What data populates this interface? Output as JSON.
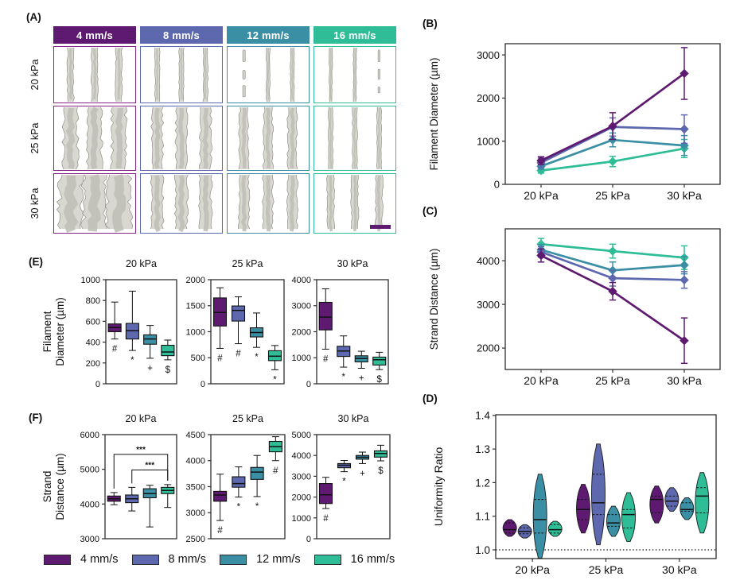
{
  "figure": {
    "panels": {
      "a": "(A)",
      "b": "(B)",
      "c": "(C)",
      "d": "(D)",
      "e": "(E)",
      "f": "(F)"
    }
  },
  "legend": {
    "items": [
      {
        "label": "4 mm/s",
        "color": "#5e1a70"
      },
      {
        "label": "8 mm/s",
        "color": "#5d68ae"
      },
      {
        "label": "12 mm/s",
        "color": "#3b8fa5"
      },
      {
        "label": "16 mm/s",
        "color": "#2ebd96"
      }
    ]
  },
  "panel_a": {
    "label": "(A)",
    "column_headers": [
      "4 mm/s",
      "8 mm/s",
      "12 mm/s",
      "16 mm/s"
    ],
    "header_colors": [
      "#5e1a70",
      "#5d68ae",
      "#3b8fa5",
      "#2ebd96"
    ],
    "border_colors": [
      "#8a2386",
      "#5d68ae",
      "#3b8fa5",
      "#2ebd96"
    ],
    "row_labels": [
      "20 kPa",
      "25 kPa",
      "30 kPa"
    ],
    "strand_widths": [
      [
        7,
        5,
        4,
        3
      ],
      [
        16,
        12,
        10,
        5
      ],
      [
        26,
        13,
        11,
        8
      ]
    ],
    "broken_strand": [
      [
        -1,
        -1,
        0,
        2
      ],
      [
        -1,
        -1,
        -1,
        -1
      ],
      [
        -1,
        -1,
        -1,
        -1
      ]
    ],
    "scale_bar_color": "#5e1a70"
  },
  "chart_data": [
    {
      "panel": "B",
      "type": "line",
      "ylabel": "Filament Diameter (µm)",
      "categories": [
        "20 kPa",
        "25 kPa",
        "30 kPa"
      ],
      "ylim": [
        0,
        3260
      ],
      "yticks": [
        0,
        1000,
        2000,
        3000
      ],
      "series": [
        {
          "name": "4 mm/s",
          "color": "#5e1a70",
          "values": [
            550,
            1350,
            2570
          ],
          "errors": [
            90,
            310,
            600
          ]
        },
        {
          "name": "8 mm/s",
          "color": "#5d68ae",
          "values": [
            500,
            1330,
            1280
          ],
          "errors": [
            110,
            210,
            330
          ]
        },
        {
          "name": "12 mm/s",
          "color": "#3b8fa5",
          "values": [
            420,
            1030,
            900
          ],
          "errors": [
            70,
            160,
            230
          ]
        },
        {
          "name": "16 mm/s",
          "color": "#2ebd96",
          "values": [
            320,
            530,
            830
          ],
          "errors": [
            60,
            120,
            210
          ]
        }
      ]
    },
    {
      "panel": "C",
      "type": "line",
      "ylabel": "Strand Distance (µm)",
      "categories": [
        "20 kPa",
        "25 kPa",
        "30 kPa"
      ],
      "ylim": [
        1510,
        4730
      ],
      "yticks": [
        2000,
        3000,
        4000
      ],
      "series": [
        {
          "name": "4 mm/s",
          "color": "#5e1a70",
          "values": [
            4120,
            3300,
            2170
          ],
          "errors": [
            150,
            200,
            520
          ]
        },
        {
          "name": "8 mm/s",
          "color": "#5d68ae",
          "values": [
            4200,
            3600,
            3560
          ],
          "errors": [
            120,
            180,
            190
          ]
        },
        {
          "name": "12 mm/s",
          "color": "#3b8fa5",
          "values": [
            4250,
            3780,
            3900
          ],
          "errors": [
            120,
            190,
            200
          ]
        },
        {
          "name": "16 mm/s",
          "color": "#2ebd96",
          "values": [
            4380,
            4220,
            4070
          ],
          "errors": [
            130,
            160,
            270
          ]
        }
      ]
    },
    {
      "panel": "D",
      "type": "violin",
      "ylabel": "Uniformity Ratio",
      "groups": [
        "20 kPa",
        "25 kPa",
        "30 kPa"
      ],
      "ylim": [
        0.974,
        1.402
      ],
      "yticks": [
        1.0,
        1.1,
        1.2,
        1.3,
        1.4
      ],
      "refline": 1.0,
      "violins": [
        {
          "group": "20 kPa",
          "speed": "4 mm/s",
          "color": "#5e1a70",
          "min": 1.04,
          "q1": 1.05,
          "median": 1.06,
          "q3": 1.08,
          "max": 1.09
        },
        {
          "group": "20 kPa",
          "speed": "8 mm/s",
          "color": "#5d68ae",
          "min": 1.035,
          "q1": 1.048,
          "median": 1.055,
          "q3": 1.065,
          "max": 1.075
        },
        {
          "group": "20 kPa",
          "speed": "12 mm/s",
          "color": "#3b8fa5",
          "min": 0.975,
          "q1": 1.05,
          "median": 1.09,
          "q3": 1.15,
          "max": 1.225
        },
        {
          "group": "20 kPa",
          "speed": "16 mm/s",
          "color": "#2ebd96",
          "min": 1.04,
          "q1": 1.05,
          "median": 1.06,
          "q3": 1.075,
          "max": 1.085
        },
        {
          "group": "25 kPa",
          "speed": "4 mm/s",
          "color": "#5e1a70",
          "min": 1.05,
          "q1": 1.09,
          "median": 1.12,
          "q3": 1.15,
          "max": 1.195
        },
        {
          "group": "25 kPa",
          "speed": "8 mm/s",
          "color": "#5d68ae",
          "min": 1.015,
          "q1": 1.105,
          "median": 1.14,
          "q3": 1.225,
          "max": 1.315
        },
        {
          "group": "25 kPa",
          "speed": "12 mm/s",
          "color": "#3b8fa5",
          "min": 1.04,
          "q1": 1.07,
          "median": 1.08,
          "q3": 1.105,
          "max": 1.13
        },
        {
          "group": "25 kPa",
          "speed": "16 mm/s",
          "color": "#2ebd96",
          "min": 1.025,
          "q1": 1.065,
          "median": 1.105,
          "q3": 1.12,
          "max": 1.17
        },
        {
          "group": "30 kPa",
          "speed": "4 mm/s",
          "color": "#5e1a70",
          "min": 1.08,
          "q1": 1.11,
          "median": 1.15,
          "q3": 1.16,
          "max": 1.19
        },
        {
          "group": "30 kPa",
          "speed": "8 mm/s",
          "color": "#5d68ae",
          "min": 1.115,
          "q1": 1.13,
          "median": 1.145,
          "q3": 1.16,
          "max": 1.185
        },
        {
          "group": "30 kPa",
          "speed": "12 mm/s",
          "color": "#3b8fa5",
          "min": 1.09,
          "q1": 1.115,
          "median": 1.12,
          "q3": 1.14,
          "max": 1.155
        },
        {
          "group": "30 kPa",
          "speed": "16 mm/s",
          "color": "#2ebd96",
          "min": 1.05,
          "q1": 1.11,
          "median": 1.16,
          "q3": 1.185,
          "max": 1.23
        }
      ]
    },
    {
      "panel": "E",
      "type": "box",
      "ylabel_lines": [
        "Filament",
        "Diameter (µm)"
      ],
      "subplots": [
        {
          "title": "20 kPa",
          "ylim": [
            0,
            1000
          ],
          "yticks": [
            0,
            200,
            400,
            600,
            800,
            1000
          ],
          "boxes": [
            {
              "speed": "4 mm/s",
              "color": "#5e1a70",
              "min": 430,
              "q1": 500,
              "median": 540,
              "q3": 575,
              "max": 785,
              "annotation": "#"
            },
            {
              "speed": "8 mm/s",
              "color": "#5d68ae",
              "min": 320,
              "q1": 430,
              "median": 510,
              "q3": 580,
              "max": 890,
              "annotation": "*"
            },
            {
              "speed": "12 mm/s",
              "color": "#3b8fa5",
              "min": 245,
              "q1": 380,
              "median": 430,
              "q3": 470,
              "max": 560,
              "annotation": "+"
            },
            {
              "speed": "16 mm/s",
              "color": "#2ebd96",
              "min": 230,
              "q1": 270,
              "median": 305,
              "q3": 370,
              "max": 420,
              "annotation": "$"
            }
          ]
        },
        {
          "title": "25 kPa",
          "ylim": [
            0,
            2000
          ],
          "yticks": [
            0,
            500,
            1000,
            1500,
            2000
          ],
          "boxes": [
            {
              "speed": "4 mm/s",
              "color": "#5e1a70",
              "min": 680,
              "q1": 1110,
              "median": 1370,
              "q3": 1650,
              "max": 1845,
              "annotation": "#"
            },
            {
              "speed": "8 mm/s",
              "color": "#5d68ae",
              "min": 770,
              "q1": 1205,
              "median": 1410,
              "q3": 1495,
              "max": 1670,
              "annotation": "#"
            },
            {
              "speed": "12 mm/s",
              "color": "#3b8fa5",
              "min": 700,
              "q1": 900,
              "median": 985,
              "q3": 1075,
              "max": 1360,
              "annotation": "*"
            },
            {
              "speed": "16 mm/s",
              "color": "#2ebd96",
              "min": 270,
              "q1": 445,
              "median": 530,
              "q3": 635,
              "max": 735,
              "annotation": "*"
            }
          ]
        },
        {
          "title": "30 kPa",
          "ylim": [
            0,
            4000
          ],
          "yticks": [
            0,
            1000,
            2000,
            3000,
            4000
          ],
          "boxes": [
            {
              "speed": "4 mm/s",
              "color": "#5e1a70",
              "min": 1330,
              "q1": 2070,
              "median": 2560,
              "q3": 3130,
              "max": 3650,
              "annotation": "#"
            },
            {
              "speed": "8 mm/s",
              "color": "#5d68ae",
              "min": 640,
              "q1": 1050,
              "median": 1260,
              "q3": 1440,
              "max": 1840,
              "annotation": "*"
            },
            {
              "speed": "12 mm/s",
              "color": "#3b8fa5",
              "min": 595,
              "q1": 840,
              "median": 975,
              "q3": 1075,
              "max": 1250,
              "annotation": "+"
            },
            {
              "speed": "16 mm/s",
              "color": "#2ebd96",
              "min": 545,
              "q1": 720,
              "median": 925,
              "q3": 1025,
              "max": 1210,
              "annotation": "$"
            }
          ]
        }
      ]
    },
    {
      "panel": "F",
      "type": "box",
      "ylabel_lines": [
        "Strand",
        "Distance (µm)"
      ],
      "subplots": [
        {
          "title": "20 kPa",
          "ylim": [
            3000,
            6000
          ],
          "yticks": [
            3000,
            4000,
            5000,
            6000
          ],
          "boxes": [
            {
              "speed": "4 mm/s",
              "color": "#5e1a70",
              "min": 3980,
              "q1": 4080,
              "median": 4150,
              "q3": 4230,
              "max": 4330,
              "annotation": ""
            },
            {
              "speed": "8 mm/s",
              "color": "#5d68ae",
              "min": 3800,
              "q1": 4040,
              "median": 4150,
              "q3": 4260,
              "max": 4480,
              "annotation": ""
            },
            {
              "speed": "12 mm/s",
              "color": "#3b8fa5",
              "min": 3340,
              "q1": 4180,
              "median": 4300,
              "q3": 4440,
              "max": 4540,
              "annotation": ""
            },
            {
              "speed": "16 mm/s",
              "color": "#2ebd96",
              "min": 3900,
              "q1": 4300,
              "median": 4390,
              "q3": 4480,
              "max": 4560,
              "annotation": ""
            }
          ],
          "brackets": [
            {
              "from": 0,
              "to": 3,
              "y": 5430,
              "label": "***"
            },
            {
              "from": 1,
              "to": 3,
              "y": 4980,
              "label": "***"
            }
          ]
        },
        {
          "title": "25 kPa",
          "ylim": [
            2500,
            4500
          ],
          "yticks": [
            2500,
            3000,
            3500,
            4000,
            4500
          ],
          "boxes": [
            {
              "speed": "4 mm/s",
              "color": "#5e1a70",
              "min": 2850,
              "q1": 3220,
              "median": 3340,
              "q3": 3410,
              "max": 3740,
              "annotation": "#"
            },
            {
              "speed": "8 mm/s",
              "color": "#5d68ae",
              "min": 3300,
              "q1": 3490,
              "median": 3560,
              "q3": 3690,
              "max": 3880,
              "annotation": "*"
            },
            {
              "speed": "12 mm/s",
              "color": "#3b8fa5",
              "min": 3310,
              "q1": 3640,
              "median": 3780,
              "q3": 3870,
              "max": 4100,
              "annotation": "*"
            },
            {
              "speed": "16 mm/s",
              "color": "#2ebd96",
              "min": 4000,
              "q1": 4170,
              "median": 4270,
              "q3": 4370,
              "max": 4460,
              "annotation": "#"
            }
          ]
        },
        {
          "title": "30 kPa",
          "ylim": [
            0,
            5000
          ],
          "yticks": [
            0,
            1000,
            2000,
            3000,
            4000,
            5000
          ],
          "boxes": [
            {
              "speed": "4 mm/s",
              "color": "#5e1a70",
              "min": 1450,
              "q1": 1690,
              "median": 2110,
              "q3": 2650,
              "max": 2950,
              "annotation": "#"
            },
            {
              "speed": "8 mm/s",
              "color": "#5d68ae",
              "min": 3220,
              "q1": 3410,
              "median": 3530,
              "q3": 3610,
              "max": 3760,
              "annotation": "*"
            },
            {
              "speed": "12 mm/s",
              "color": "#3b8fa5",
              "min": 3610,
              "q1": 3820,
              "median": 3915,
              "q3": 4000,
              "max": 4160,
              "annotation": "+"
            },
            {
              "speed": "16 mm/s",
              "color": "#2ebd96",
              "min": 3740,
              "q1": 3920,
              "median": 4095,
              "q3": 4220,
              "max": 4490,
              "annotation": "$"
            }
          ]
        }
      ]
    }
  ]
}
